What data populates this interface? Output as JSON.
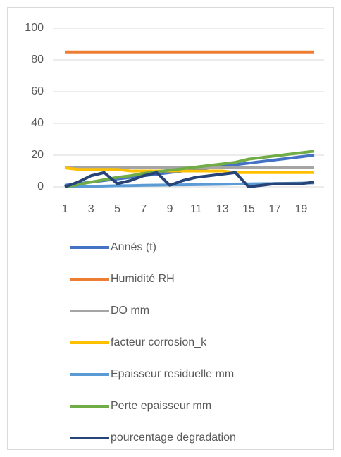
{
  "chart_data": {
    "type": "line",
    "categories": [
      1,
      null,
      3,
      null,
      5,
      null,
      7,
      null,
      9,
      null,
      11,
      null,
      13,
      null,
      15,
      null,
      17,
      null,
      19,
      null
    ],
    "ylim": [
      0,
      100
    ],
    "yticks": [
      0,
      20,
      40,
      60,
      80,
      100
    ],
    "grid": true,
    "legend": "bottom",
    "series": [
      {
        "name": "Annés (t)",
        "color": "#4472c4",
        "values": [
          1,
          2,
          3,
          4,
          5,
          6,
          7,
          8,
          9,
          10,
          11,
          12,
          13,
          14,
          15,
          16,
          17,
          18,
          19,
          20
        ]
      },
      {
        "name": "Humidité RH",
        "color": "#ed7d31",
        "values": [
          85,
          85,
          85,
          85,
          85,
          85,
          85,
          85,
          85,
          85,
          85,
          85,
          85,
          85,
          85,
          85,
          85,
          85,
          85,
          85
        ]
      },
      {
        "name": "DO mm",
        "color": "#a5a5a5",
        "values": [
          12,
          12,
          12,
          12,
          12,
          12,
          12,
          12,
          12,
          12,
          12,
          12,
          12,
          12,
          12,
          12,
          12,
          12,
          12,
          12
        ]
      },
      {
        "name": "facteur corrosion_k",
        "color": "#ffc000",
        "values": [
          12,
          11,
          11,
          11,
          11,
          10,
          10,
          10,
          10,
          10,
          10,
          10,
          10,
          9,
          9,
          9,
          9,
          9,
          9,
          9
        ]
      },
      {
        "name": "Epaisseur residuelle mm",
        "color": "#5b9bd5",
        "values": [
          0,
          0.2,
          0.4,
          0.5,
          0.7,
          0.8,
          1,
          1.1,
          1.2,
          1.3,
          1.4,
          1.5,
          1.6,
          1.8,
          1.9,
          2,
          2.1,
          2.2,
          2.4,
          2.5
        ]
      },
      {
        "name": "Perte epaisseur mm",
        "color": "#70ad47",
        "values": [
          0,
          1.5,
          3,
          4.5,
          6,
          7,
          8.5,
          9.5,
          10.5,
          11.5,
          12.5,
          13.5,
          14.5,
          15.5,
          17.5,
          18.5,
          19.5,
          20.5,
          21.5,
          22.5
        ]
      },
      {
        "name": "pourcentage degradation",
        "color": "#264478",
        "values": [
          0,
          3,
          7,
          9,
          2,
          4,
          7,
          9,
          1,
          4,
          6,
          7,
          8,
          9,
          0,
          1,
          2,
          2,
          2,
          3
        ]
      }
    ]
  }
}
